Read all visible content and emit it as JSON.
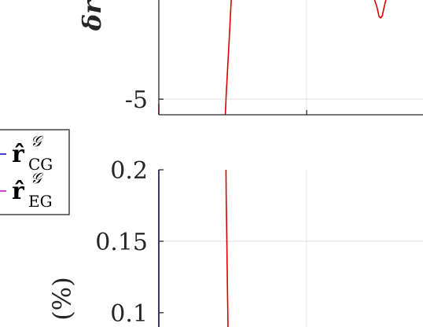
{
  "chart_data": [
    {
      "type": "line",
      "ylabel": "δr",
      "yticks": [
        {
          "value": -5,
          "label": "-5"
        }
      ],
      "ylim": [
        -6.7,
        5.8
      ],
      "xlim": [
        0,
        1
      ],
      "x_gridlines": [
        0.5
      ],
      "y_gridlines": [
        -5
      ],
      "grid": true,
      "colors": {
        "lead_line": "#dd0000",
        "axes": "#262626",
        "grid": "#e0e0e0"
      },
      "series": [
        {
          "color": "#dd0000",
          "points": [
            [
              0.0,
              -5.5
            ],
            [
              0.0,
              -6.7
            ]
          ]
        },
        {
          "color": "#dd0000",
          "points": [
            [
              0.225,
              -6.7
            ],
            [
              0.228,
              -4.5
            ],
            [
              0.233,
              -1.5
            ],
            [
              0.238,
              1.5
            ],
            [
              0.242,
              4.0
            ],
            [
              0.245,
              5.8
            ]
          ]
        },
        {
          "color": "#dd0000",
          "points": [
            [
              0.73,
              5.8
            ],
            [
              0.738,
              5.0
            ],
            [
              0.745,
              4.0
            ],
            [
              0.75,
              3.85
            ],
            [
              0.756,
              4.1
            ],
            [
              0.762,
              5.0
            ],
            [
              0.768,
              5.8
            ]
          ]
        }
      ]
    },
    {
      "type": "line",
      "ylabel": "(%)",
      "yticks": [
        {
          "value": 0.2,
          "label": "0.2"
        },
        {
          "value": 0.15,
          "label": "0.15"
        },
        {
          "value": 0.1,
          "label": "0.1"
        }
      ],
      "ylim": [
        0.09,
        0.2
      ],
      "xlim": [
        0,
        1
      ],
      "x_gridlines": [
        0.5
      ],
      "y_gridlines": [
        0.15
      ],
      "grid": true,
      "colors": {
        "axes": "#262626",
        "grid": "#e0e0e0"
      },
      "legend": {
        "placement": "left",
        "entries": [
          {
            "base": "r̂",
            "sup": "𝒢",
            "sub": "CG",
            "color": "#0000cc"
          },
          {
            "base": "r̂",
            "sup": "𝒢",
            "sub": "EG",
            "color": "#cc00cc"
          }
        ]
      },
      "series": [
        {
          "color": "#0000cc",
          "points": [
            [
              0.0,
              0.2
            ],
            [
              0.0,
              0.09
            ]
          ]
        },
        {
          "color": "#dd0000",
          "points": [
            [
              0.227,
              0.2
            ],
            [
              0.228,
              0.18
            ],
            [
              0.23,
              0.15
            ],
            [
              0.232,
              0.12
            ],
            [
              0.234,
              0.09
            ]
          ]
        }
      ]
    }
  ]
}
